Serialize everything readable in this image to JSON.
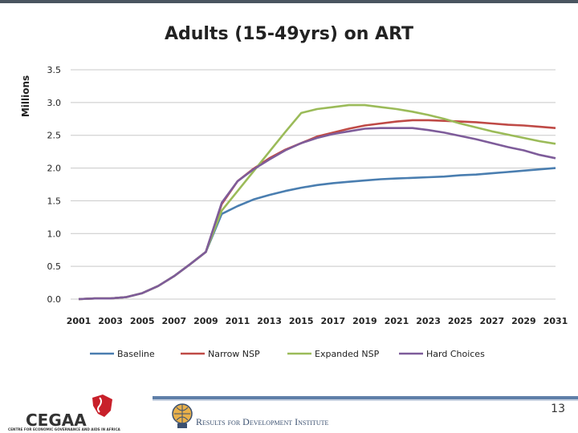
{
  "slide": {
    "page_number": "13",
    "logos": {
      "cegaa": "CEGAA",
      "cegaa_tagline": "CENTRE FOR ECONOMIC GOVERNANCE AND AIDS IN AFRICA",
      "r4d": "Results for Development Institute"
    }
  },
  "colors": {
    "baseline": "#4a7eb0",
    "narrow": "#bf4a46",
    "expanded": "#9bbb59",
    "hard": "#7e5c9a",
    "grid": "#c8c8c8"
  },
  "chart_data": {
    "type": "line",
    "title": "Adults (15-49yrs) on ART",
    "ylabel": "Millions",
    "xlabel": "",
    "ylim": [
      0,
      3.5
    ],
    "yticks": [
      "0.0",
      "0.5",
      "1.0",
      "1.5",
      "2.0",
      "2.5",
      "3.0",
      "3.5"
    ],
    "x": [
      2001,
      2002,
      2003,
      2004,
      2005,
      2006,
      2007,
      2008,
      2009,
      2010,
      2011,
      2012,
      2013,
      2014,
      2015,
      2016,
      2017,
      2018,
      2019,
      2020,
      2021,
      2022,
      2023,
      2024,
      2025,
      2026,
      2027,
      2028,
      2029,
      2030,
      2031
    ],
    "xticks": [
      "2001",
      "2003",
      "2005",
      "2007",
      "2009",
      "2011",
      "2013",
      "2015",
      "2017",
      "2019",
      "2021",
      "2023",
      "2025",
      "2027",
      "2029",
      "2031"
    ],
    "grid": true,
    "legend": "bottom",
    "series": [
      {
        "name": "Baseline",
        "color_key": "baseline",
        "values": [
          0.0,
          0.01,
          0.01,
          0.03,
          0.09,
          0.2,
          0.35,
          0.53,
          0.72,
          1.3,
          1.42,
          1.52,
          1.59,
          1.65,
          1.7,
          1.74,
          1.77,
          1.79,
          1.81,
          1.83,
          1.84,
          1.85,
          1.86,
          1.87,
          1.89,
          1.9,
          1.92,
          1.94,
          1.96,
          1.98,
          2.0
        ]
      },
      {
        "name": "Narrow NSP",
        "color_key": "narrow",
        "values": [
          0.0,
          0.01,
          0.01,
          0.03,
          0.09,
          0.2,
          0.35,
          0.53,
          0.72,
          1.45,
          1.8,
          1.99,
          2.15,
          2.28,
          2.38,
          2.48,
          2.54,
          2.6,
          2.65,
          2.68,
          2.71,
          2.73,
          2.73,
          2.72,
          2.71,
          2.7,
          2.68,
          2.66,
          2.65,
          2.63,
          2.61
        ]
      },
      {
        "name": "Expanded NSP",
        "color_key": "expanded",
        "values": [
          0.0,
          0.01,
          0.01,
          0.03,
          0.09,
          0.2,
          0.35,
          0.53,
          0.72,
          1.35,
          1.65,
          1.95,
          2.25,
          2.55,
          2.84,
          2.9,
          2.93,
          2.96,
          2.96,
          2.93,
          2.9,
          2.86,
          2.81,
          2.75,
          2.68,
          2.62,
          2.56,
          2.51,
          2.46,
          2.41,
          2.37
        ]
      },
      {
        "name": "Hard Choices",
        "color_key": "hard",
        "values": [
          0.0,
          0.01,
          0.01,
          0.03,
          0.09,
          0.2,
          0.35,
          0.53,
          0.72,
          1.47,
          1.8,
          1.98,
          2.13,
          2.27,
          2.38,
          2.46,
          2.52,
          2.56,
          2.6,
          2.61,
          2.61,
          2.61,
          2.58,
          2.54,
          2.49,
          2.44,
          2.38,
          2.32,
          2.27,
          2.2,
          2.15
        ]
      }
    ]
  }
}
